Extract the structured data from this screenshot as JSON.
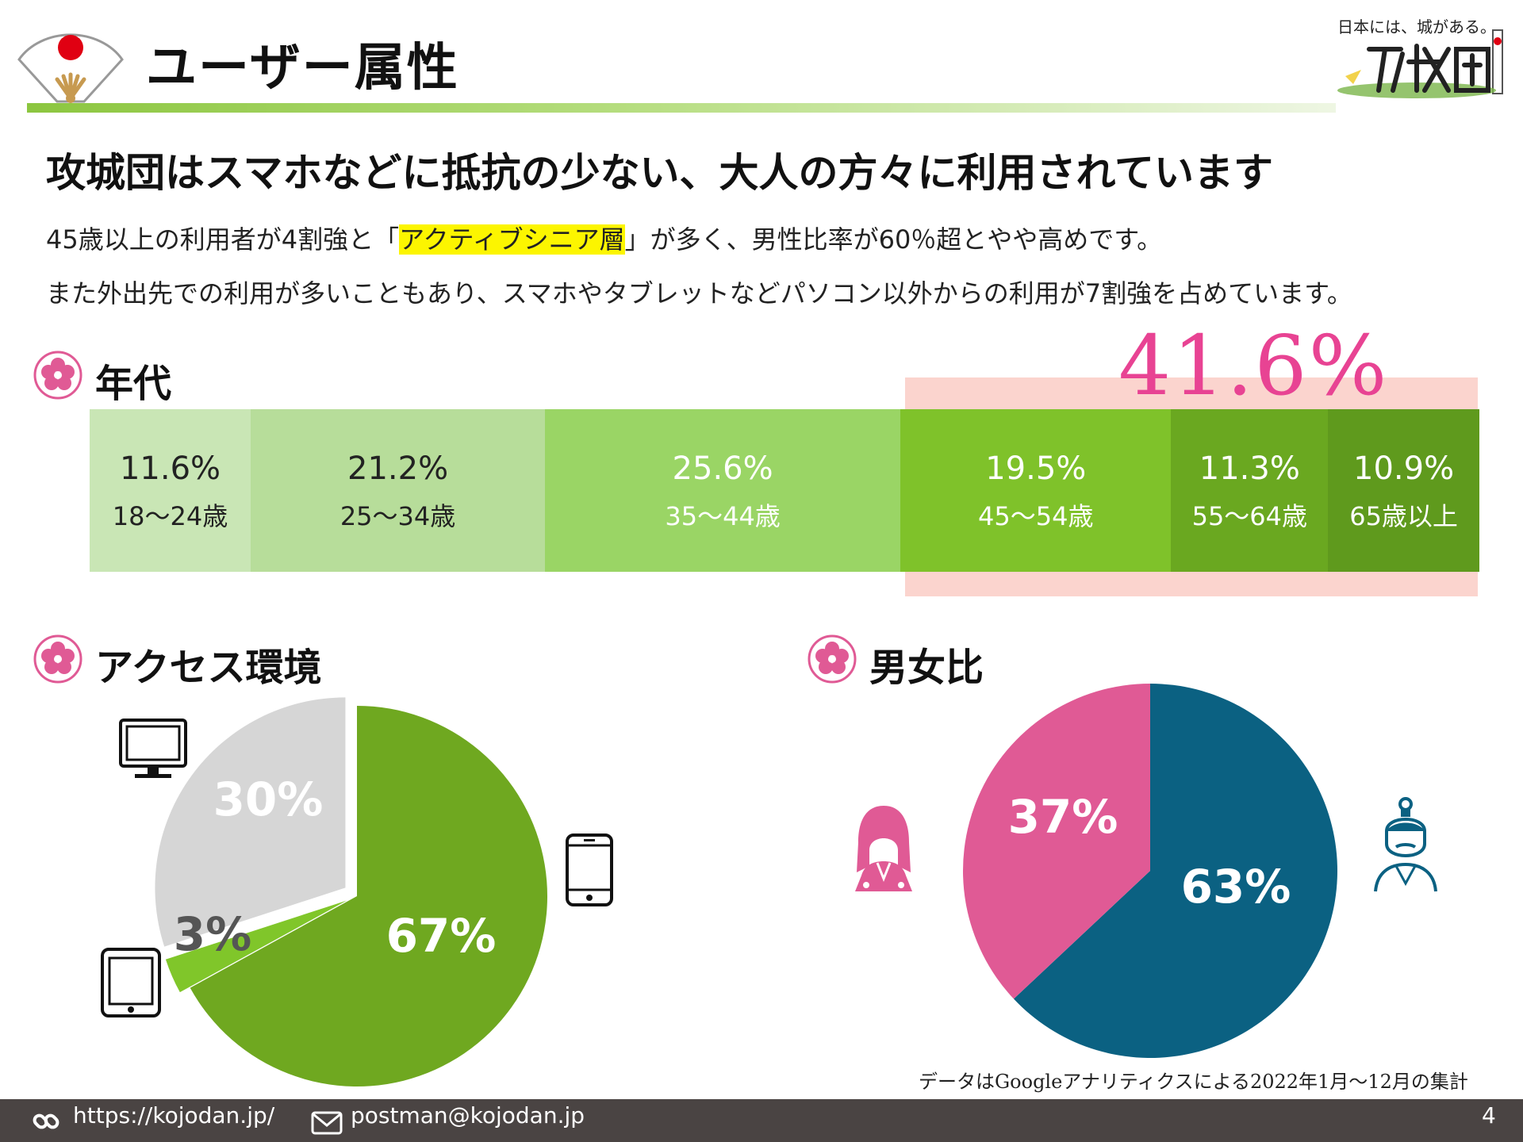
{
  "header": {
    "title": "ユーザー属性",
    "logo_tagline": "日本には、城がある。"
  },
  "headline": "攻城団はスマホなどに抵抗の少ない、大人の方々に利用されています",
  "lead": {
    "line1_before": "45歳以上の利用者が4割強と「",
    "line1_highlight": "アクティブシニア層",
    "line1_after": "」が多く、男性比率が60％超とやや高めです。",
    "line2": "また外出先での利用が多いこともあり、スマホやタブレットなどパソコン以外からの利用が7割強を占めています。"
  },
  "sections": {
    "age": "年代",
    "access": "アクセス環境",
    "gender": "男女比"
  },
  "age_highlight_value": "41.6%",
  "chart_data": [
    {
      "type": "bar",
      "stacked": true,
      "categories": [
        "18～24歳",
        "25～34歳",
        "35～44歳",
        "45～54歳",
        "55～64歳",
        "65歳以上"
      ],
      "values": [
        11.6,
        21.2,
        25.6,
        19.5,
        11.3,
        10.9
      ],
      "labels": [
        "11.6%",
        "21.2%",
        "25.6%",
        "19.5%",
        "11.3%",
        "10.9%"
      ],
      "colors": [
        "#c9e6b5",
        "#b7dd9a",
        "#9ad565",
        "#7fc22a",
        "#6aa820",
        "#5f9a1d"
      ],
      "text_colors": [
        "#222222",
        "#222222",
        "#ffffff",
        "#ffffff",
        "#ffffff",
        "#ffffff"
      ]
    },
    {
      "type": "pie",
      "values": [
        67,
        3,
        30
      ],
      "labels": [
        "67%",
        "3%",
        "30%"
      ],
      "colors": [
        "#6fa820",
        "#80c62a",
        "#d6d6d6"
      ],
      "label_colors": [
        "#ffffff",
        "#555555",
        "#ffffff"
      ]
    },
    {
      "type": "pie",
      "values": [
        63,
        37
      ],
      "labels": [
        "63%",
        "37%"
      ],
      "colors": [
        "#0b6182",
        "#e05a95"
      ]
    }
  ],
  "icons": {
    "fan": "folding-fan-icon",
    "logo": "kojodan-logo",
    "section": "plum-blossom-icon",
    "desktop": "desktop-icon",
    "smartphone": "smartphone-icon",
    "tablet": "tablet-icon",
    "female": "female-icon",
    "male": "male-samurai-icon",
    "link": "link-icon",
    "mail": "mail-icon"
  },
  "note": "データはGoogleアナリティクスによる2022年1月～12月の集計",
  "footer": {
    "url": "https://kojodan.jp/",
    "email": "postman@kojodan.jp",
    "page_number": "4"
  }
}
